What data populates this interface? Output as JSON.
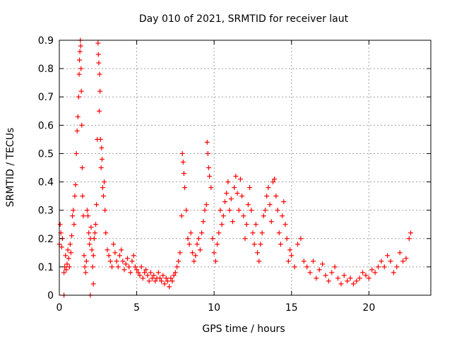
{
  "chart_data": {
    "type": "scatter",
    "title": "Day 010 of 2021, SRMTID for receiver laut",
    "xlabel": "GPS time / hours",
    "ylabel": "SRMTID / TECUs",
    "xlim": [
      0,
      24
    ],
    "ylim": [
      0,
      0.9
    ],
    "xticks": [
      0,
      5,
      10,
      15,
      20
    ],
    "yticks": [
      0,
      0.1,
      0.2,
      0.3,
      0.4,
      0.5,
      0.6,
      0.7,
      0.8,
      0.9
    ],
    "grid": true,
    "marker": "plus",
    "series": [
      {
        "name": "SRMTID",
        "color": "#ff0000",
        "x": [
          0.0,
          0.05,
          0.1,
          0.15,
          0.2,
          0.3,
          0.35,
          0.4,
          0.45,
          0.5,
          0.55,
          0.6,
          0.65,
          0.7,
          0.75,
          0.8,
          0.85,
          0.9,
          0.95,
          1.0,
          1.05,
          1.1,
          1.15,
          1.2,
          1.25,
          1.28,
          1.3,
          1.33,
          1.36,
          1.38,
          1.4,
          1.42,
          1.45,
          1.48,
          1.5,
          1.55,
          1.6,
          1.65,
          1.7,
          1.75,
          1.8,
          1.85,
          1.9,
          1.95,
          2.0,
          2.05,
          2.1,
          2.15,
          2.2,
          2.25,
          2.3,
          2.35,
          2.4,
          2.45,
          2.5,
          2.52,
          2.55,
          2.58,
          2.6,
          2.63,
          2.66,
          2.7,
          2.73,
          2.76,
          2.8,
          2.85,
          2.9,
          2.95,
          3.0,
          3.1,
          3.2,
          3.3,
          3.4,
          3.5,
          3.6,
          3.7,
          3.8,
          3.9,
          4.0,
          4.1,
          4.2,
          4.3,
          4.4,
          4.5,
          4.6,
          4.7,
          4.8,
          4.9,
          5.0,
          5.1,
          5.2,
          5.3,
          5.4,
          5.5,
          5.6,
          5.7,
          5.8,
          5.9,
          6.0,
          6.1,
          6.2,
          6.3,
          6.4,
          6.5,
          6.6,
          6.7,
          6.8,
          6.9,
          7.0,
          7.1,
          7.2,
          7.3,
          7.4,
          7.5,
          7.6,
          7.7,
          7.8,
          7.9,
          7.95,
          8.0,
          8.05,
          8.1,
          8.2,
          8.3,
          8.4,
          8.5,
          8.6,
          8.7,
          8.8,
          8.9,
          9.0,
          9.1,
          9.2,
          9.3,
          9.4,
          9.5,
          9.55,
          9.6,
          9.65,
          9.7,
          9.8,
          9.9,
          10.0,
          10.1,
          10.2,
          10.3,
          10.4,
          10.5,
          10.6,
          10.7,
          10.8,
          10.9,
          11.0,
          11.1,
          11.2,
          11.3,
          11.4,
          11.5,
          11.6,
          11.7,
          11.8,
          11.9,
          12.0,
          12.1,
          12.2,
          12.3,
          12.4,
          12.5,
          12.6,
          12.7,
          12.8,
          12.9,
          13.0,
          13.1,
          13.2,
          13.3,
          13.4,
          13.5,
          13.6,
          13.7,
          13.8,
          13.9,
          14.0,
          14.1,
          14.2,
          14.3,
          14.4,
          14.5,
          14.6,
          14.7,
          14.8,
          14.9,
          15.0,
          15.2,
          15.4,
          15.6,
          15.8,
          16.0,
          16.2,
          16.4,
          16.6,
          16.8,
          17.0,
          17.2,
          17.4,
          17.6,
          17.8,
          18.0,
          18.2,
          18.4,
          18.6,
          18.8,
          19.0,
          19.2,
          19.4,
          19.6,
          19.8,
          20.0,
          20.2,
          20.4,
          20.6,
          20.8,
          21.0,
          21.2,
          21.4,
          21.6,
          21.8,
          22.0,
          22.2,
          22.4,
          22.6,
          22.7,
          0.3,
          2.0,
          2.2
        ],
        "y": [
          0.18,
          0.25,
          0.22,
          0.17,
          0.2,
          0.08,
          0.1,
          0.14,
          0.09,
          0.11,
          0.16,
          0.13,
          0.1,
          0.18,
          0.15,
          0.21,
          0.28,
          0.3,
          0.25,
          0.35,
          0.39,
          0.5,
          0.58,
          0.63,
          0.7,
          0.78,
          0.83,
          0.86,
          0.9,
          0.88,
          0.8,
          0.72,
          0.6,
          0.45,
          0.35,
          0.28,
          0.14,
          0.1,
          0.08,
          0.12,
          0.3,
          0.28,
          0.22,
          0.18,
          0.2,
          0.24,
          0.16,
          0.1,
          0.14,
          0.2,
          0.22,
          0.25,
          0.32,
          0.55,
          0.89,
          0.85,
          0.82,
          0.65,
          0.78,
          0.72,
          0.55,
          0.45,
          0.52,
          0.48,
          0.38,
          0.35,
          0.4,
          0.3,
          0.22,
          0.16,
          0.14,
          0.12,
          0.1,
          0.18,
          0.15,
          0.12,
          0.1,
          0.14,
          0.16,
          0.12,
          0.09,
          0.11,
          0.13,
          0.1,
          0.08,
          0.12,
          0.14,
          0.1,
          0.09,
          0.08,
          0.07,
          0.1,
          0.06,
          0.08,
          0.09,
          0.07,
          0.05,
          0.08,
          0.06,
          0.07,
          0.05,
          0.06,
          0.08,
          0.06,
          0.05,
          0.07,
          0.04,
          0.06,
          0.05,
          0.03,
          0.06,
          0.05,
          0.07,
          0.08,
          0.1,
          0.12,
          0.15,
          0.28,
          0.5,
          0.47,
          0.43,
          0.38,
          0.3,
          0.2,
          0.18,
          0.22,
          0.15,
          0.12,
          0.14,
          0.18,
          0.2,
          0.16,
          0.22,
          0.26,
          0.3,
          0.32,
          0.54,
          0.5,
          0.45,
          0.42,
          0.38,
          0.2,
          0.15,
          0.12,
          0.18,
          0.22,
          0.3,
          0.25,
          0.28,
          0.33,
          0.36,
          0.4,
          0.3,
          0.34,
          0.26,
          0.38,
          0.42,
          0.36,
          0.3,
          0.41,
          0.35,
          0.28,
          0.2,
          0.25,
          0.32,
          0.38,
          0.3,
          0.22,
          0.18,
          0.25,
          0.15,
          0.12,
          0.18,
          0.22,
          0.28,
          0.3,
          0.35,
          0.38,
          0.32,
          0.26,
          0.4,
          0.41,
          0.35,
          0.3,
          0.22,
          0.18,
          0.28,
          0.33,
          0.25,
          0.2,
          0.12,
          0.16,
          0.14,
          0.1,
          0.18,
          0.2,
          0.12,
          0.1,
          0.08,
          0.12,
          0.06,
          0.09,
          0.11,
          0.07,
          0.05,
          0.08,
          0.1,
          0.06,
          0.04,
          0.07,
          0.05,
          0.06,
          0.04,
          0.05,
          0.06,
          0.08,
          0.07,
          0.06,
          0.09,
          0.08,
          0.1,
          0.12,
          0.1,
          0.14,
          0.12,
          0.08,
          0.1,
          0.15,
          0.12,
          0.13,
          0.2,
          0.22,
          0.0,
          0.0,
          0.04
        ]
      }
    ]
  }
}
